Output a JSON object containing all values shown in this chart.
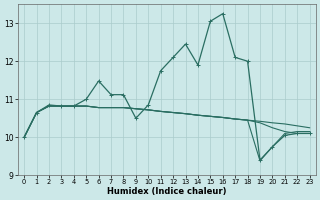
{
  "xlabel": "Humidex (Indice chaleur)",
  "xlim": [
    -0.5,
    23.5
  ],
  "ylim": [
    9,
    13.5
  ],
  "yticks": [
    9,
    10,
    11,
    12,
    13
  ],
  "xticks": [
    0,
    1,
    2,
    3,
    4,
    5,
    6,
    7,
    8,
    9,
    10,
    11,
    12,
    13,
    14,
    15,
    16,
    17,
    18,
    19,
    20,
    21,
    22,
    23
  ],
  "bg_color": "#cce8e8",
  "line_color": "#2a6e62",
  "grid_color": "#aacccc",
  "series_main": [
    10.0,
    10.65,
    10.85,
    10.82,
    10.82,
    11.0,
    11.48,
    11.12,
    11.12,
    10.5,
    10.85,
    11.75,
    12.1,
    12.45,
    11.9,
    13.05,
    13.25,
    12.1,
    12.0,
    9.4,
    9.75,
    10.05,
    10.1,
    10.1
  ],
  "series_flat1": [
    10.0,
    10.65,
    10.82,
    10.82,
    10.82,
    10.82,
    10.78,
    10.78,
    10.78,
    10.75,
    10.72,
    10.68,
    10.65,
    10.62,
    10.58,
    10.55,
    10.52,
    10.48,
    10.45,
    10.42,
    10.38,
    10.35,
    10.3,
    10.25
  ],
  "series_flat2": [
    10.0,
    10.65,
    10.82,
    10.82,
    10.82,
    10.82,
    10.78,
    10.78,
    10.78,
    10.75,
    10.72,
    10.68,
    10.65,
    10.62,
    10.58,
    10.55,
    10.52,
    10.48,
    10.45,
    10.38,
    10.25,
    10.15,
    10.1,
    10.1
  ],
  "series_flat3": [
    10.0,
    10.65,
    10.82,
    10.82,
    10.82,
    10.82,
    10.78,
    10.78,
    10.78,
    10.75,
    10.72,
    10.68,
    10.65,
    10.62,
    10.58,
    10.55,
    10.52,
    10.48,
    10.45,
    9.38,
    9.75,
    10.1,
    10.15,
    10.15
  ]
}
